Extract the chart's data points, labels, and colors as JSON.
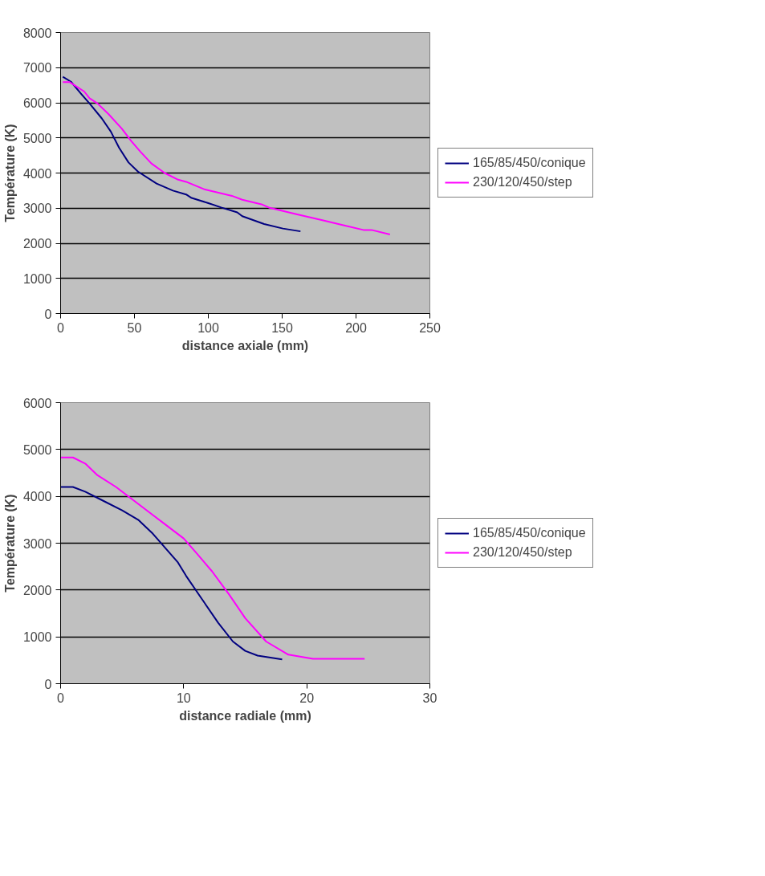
{
  "chart_data": [
    {
      "type": "line",
      "xlabel": "distance axiale (mm)",
      "ylabel": "Température (K)",
      "xlim": [
        0,
        250
      ],
      "xticks": [
        0,
        50,
        100,
        150,
        200,
        250
      ],
      "ylim": [
        0,
        8000
      ],
      "yticks": [
        0,
        1000,
        2000,
        3000,
        4000,
        5000,
        6000,
        7000,
        8000
      ],
      "grid": "y",
      "legend": "right",
      "marker": "none",
      "line_style": "solid",
      "series": [
        {
          "name": "165/85/450/conique",
          "color": "#000080",
          "x": [
            1.5,
            7,
            14,
            19.6,
            27.8,
            34,
            39.6,
            46,
            52.4,
            65,
            76,
            85,
            88.7,
            99.6,
            108.7,
            119.6,
            123,
            137.8,
            150.5,
            162.4
          ],
          "values": [
            6740,
            6600,
            6250,
            5980,
            5560,
            5180,
            4720,
            4300,
            4040,
            3700,
            3500,
            3390,
            3290,
            3150,
            3020,
            2880,
            2770,
            2550,
            2420,
            2340
          ]
        },
        {
          "name": "230/120/450/step",
          "color": "#ff00ff",
          "x": [
            1.5,
            6,
            16,
            19.6,
            25,
            32.4,
            41.5,
            47.8,
            54,
            61.5,
            70.5,
            79.6,
            85,
            97.8,
            116,
            123,
            136,
            141.5,
            159.6,
            177.8,
            192,
            205,
            210.5,
            223
          ],
          "values": [
            6590,
            6590,
            6320,
            6130,
            5980,
            5680,
            5260,
            4910,
            4610,
            4270,
            4000,
            3810,
            3750,
            3530,
            3350,
            3240,
            3110,
            3010,
            2830,
            2650,
            2510,
            2380,
            2380,
            2250
          ]
        }
      ]
    },
    {
      "type": "line",
      "xlabel": "distance radiale (mm)",
      "ylabel": "Température (K)",
      "xlim": [
        0,
        30
      ],
      "xticks": [
        0,
        10,
        20,
        30
      ],
      "ylim": [
        0,
        6000
      ],
      "yticks": [
        0,
        1000,
        2000,
        3000,
        4000,
        5000,
        6000
      ],
      "grid": "y",
      "legend": "right",
      "marker": "none",
      "line_style": "solid",
      "series": [
        {
          "name": "165/85/450/conique",
          "color": "#000080",
          "x": [
            0,
            1,
            2,
            3.5,
            5,
            6.3,
            7.5,
            8.5,
            9.5,
            10.2,
            11.5,
            12.8,
            14,
            15,
            16,
            18
          ],
          "values": [
            4200,
            4200,
            4100,
            3900,
            3700,
            3500,
            3200,
            2900,
            2600,
            2300,
            1800,
            1300,
            900,
            700,
            600,
            520
          ]
        },
        {
          "name": "230/120/450/step",
          "color": "#ff00ff",
          "x": [
            0,
            1,
            2,
            3,
            4.5,
            6,
            7.5,
            8.5,
            10,
            11,
            12.3,
            13.7,
            15,
            16.7,
            18.5,
            20.5,
            24.7
          ],
          "values": [
            4830,
            4830,
            4700,
            4450,
            4200,
            3900,
            3600,
            3400,
            3100,
            2800,
            2400,
            1900,
            1400,
            900,
            620,
            530,
            530
          ]
        }
      ]
    }
  ]
}
